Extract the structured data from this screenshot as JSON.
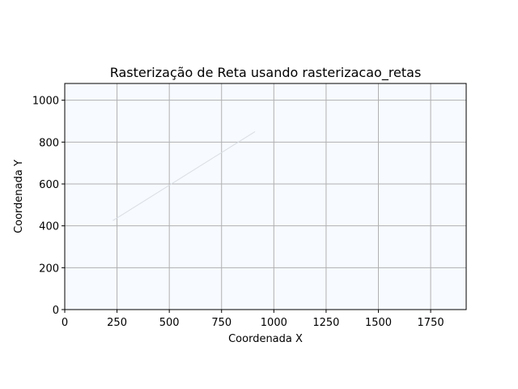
{
  "chart_data": {
    "type": "line",
    "title": "Rasterização de Reta usando rasterizacao_retas",
    "xlabel": "Coordenada X",
    "ylabel": "Coordenada Y",
    "xlim": [
      0,
      1920
    ],
    "ylim": [
      0,
      1080
    ],
    "xticks": [
      0,
      250,
      500,
      750,
      1000,
      1250,
      1500,
      1750
    ],
    "yticks": [
      0,
      200,
      400,
      600,
      800,
      1000
    ],
    "grid": true,
    "series": [
      {
        "x": [
          230,
          910
        ],
        "y": [
          425,
          850
        ],
        "color": "#d9dee3"
      }
    ],
    "colors": {
      "plot_background": "#f7faff",
      "grid": "#b0b0b0",
      "axes": "#000000"
    }
  }
}
